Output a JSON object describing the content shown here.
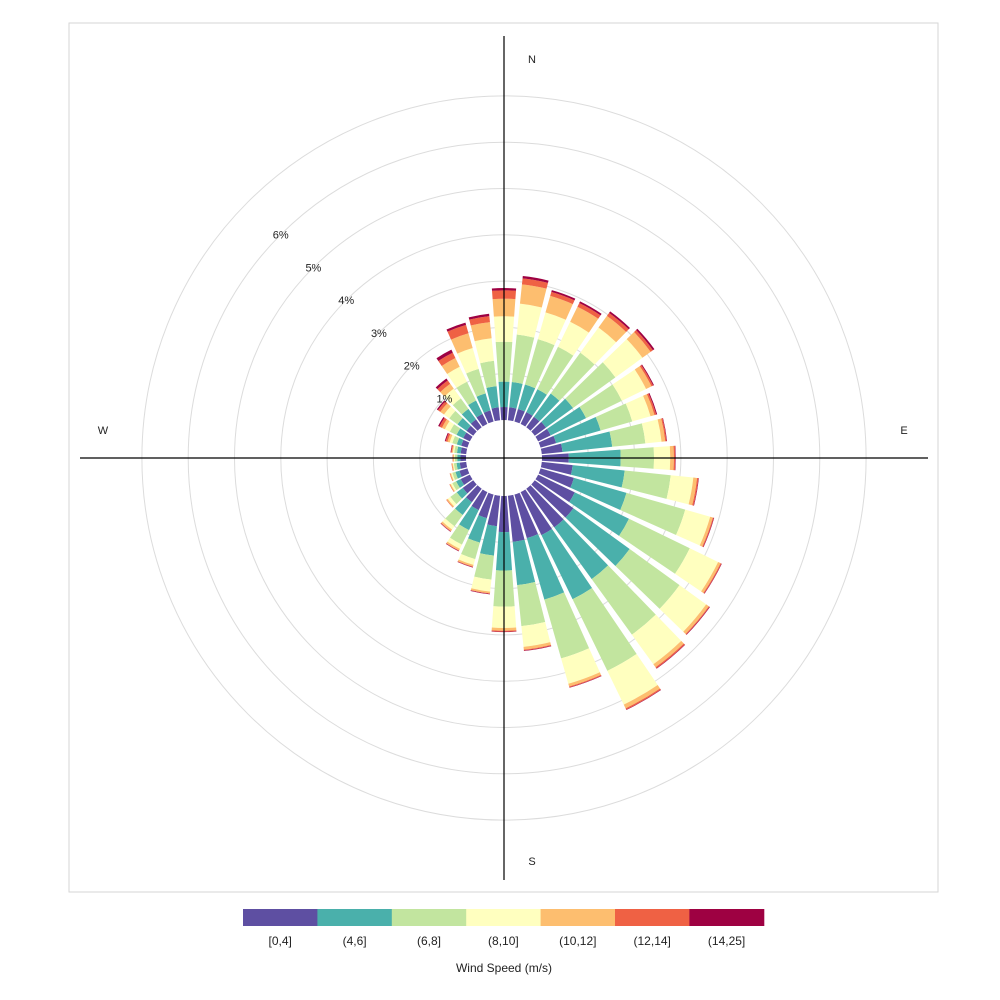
{
  "chart_data": {
    "type": "polar-stacked-bar",
    "subtype": "wind-rose",
    "title": "",
    "legend_title": "Wind Speed (m/s)",
    "legend_position": "bottom",
    "directions": [
      "N",
      "E",
      "S",
      "W"
    ],
    "radial_tick_labels": [
      "1%",
      "2%",
      "3%",
      "4%",
      "5%",
      "6%"
    ],
    "radial_range": [
      0,
      7
    ],
    "grid": true,
    "bins": [
      {
        "label": "[0,4]",
        "color": "#5e4fa2"
      },
      {
        "label": "(4,6]",
        "color": "#4ab0ab"
      },
      {
        "label": "(6,8]",
        "color": "#c2e59f"
      },
      {
        "label": "(8,10]",
        "color": "#ffffbf"
      },
      {
        "label": "(10,12]",
        "color": "#fdbe6f"
      },
      {
        "label": "(12,14]",
        "color": "#ef6144"
      },
      {
        "label": "(14,25]",
        "color": "#9e0142"
      }
    ],
    "sector_width_deg": 10,
    "sectors": [
      {
        "direction_deg": 0,
        "values": [
          0.28,
          0.55,
          0.86,
          0.55,
          0.38,
          0.18,
          0.05
        ]
      },
      {
        "direction_deg": 10,
        "values": [
          0.28,
          0.55,
          1.03,
          0.67,
          0.42,
          0.13,
          0.05
        ]
      },
      {
        "direction_deg": 20,
        "values": [
          0.28,
          0.55,
          1.02,
          0.6,
          0.37,
          0.09,
          0.04
        ]
      },
      {
        "direction_deg": 30,
        "values": [
          0.28,
          0.55,
          1.02,
          0.6,
          0.36,
          0.09,
          0.04
        ]
      },
      {
        "direction_deg": 40,
        "values": [
          0.28,
          0.62,
          1.09,
          0.67,
          0.31,
          0.08,
          0.04
        ]
      },
      {
        "direction_deg": 50,
        "values": [
          0.3,
          0.72,
          1.13,
          0.72,
          0.22,
          0.06,
          0.04
        ]
      },
      {
        "direction_deg": 60,
        "values": [
          0.3,
          0.85,
          0.86,
          0.58,
          0.13,
          0.04,
          0.02
        ]
      },
      {
        "direction_deg": 70,
        "values": [
          0.35,
          1.0,
          0.71,
          0.41,
          0.09,
          0.04,
          0.02
        ]
      },
      {
        "direction_deg": 80,
        "values": [
          0.45,
          1.08,
          0.72,
          0.35,
          0.08,
          0.03,
          0.01
        ]
      },
      {
        "direction_deg": 90,
        "values": [
          0.58,
          1.12,
          0.72,
          0.35,
          0.08,
          0.03,
          0.01
        ]
      },
      {
        "direction_deg": 100,
        "values": [
          0.67,
          1.13,
          1.0,
          0.49,
          0.08,
          0.03,
          0.01
        ]
      },
      {
        "direction_deg": 110,
        "values": [
          0.75,
          1.18,
          1.32,
          0.56,
          0.06,
          0.02,
          0.01
        ]
      },
      {
        "direction_deg": 120,
        "values": [
          0.88,
          1.3,
          1.46,
          0.68,
          0.06,
          0.02,
          0.01
        ]
      },
      {
        "direction_deg": 130,
        "values": [
          1.03,
          1.5,
          1.33,
          0.71,
          0.07,
          0.02,
          0.01
        ]
      },
      {
        "direction_deg": 140,
        "values": [
          1.03,
          1.38,
          1.48,
          0.79,
          0.08,
          0.03,
          0.01
        ]
      },
      {
        "direction_deg": 150,
        "values": [
          1.03,
          1.54,
          1.72,
          0.81,
          0.09,
          0.03,
          0.01
        ]
      },
      {
        "direction_deg": 160,
        "values": [
          0.98,
          1.38,
          1.32,
          0.57,
          0.06,
          0.02,
          0.01
        ]
      },
      {
        "direction_deg": 170,
        "values": [
          1.0,
          0.94,
          0.89,
          0.45,
          0.06,
          0.02,
          0.01
        ]
      },
      {
        "direction_deg": 180,
        "values": [
          0.78,
          0.83,
          0.78,
          0.46,
          0.06,
          0.02,
          0.01
        ]
      },
      {
        "direction_deg": 190,
        "values": [
          0.66,
          0.64,
          0.52,
          0.26,
          0.04,
          0.01,
          0.01
        ]
      },
      {
        "direction_deg": 200,
        "values": [
          0.53,
          0.55,
          0.37,
          0.13,
          0.04,
          0.01,
          0.01
        ]
      },
      {
        "direction_deg": 210,
        "values": [
          0.43,
          0.48,
          0.35,
          0.1,
          0.04,
          0.01,
          0.01
        ]
      },
      {
        "direction_deg": 220,
        "values": [
          0.36,
          0.34,
          0.3,
          0.09,
          0.04,
          0.01,
          0.01
        ]
      },
      {
        "direction_deg": 230,
        "values": [
          0.28,
          0.16,
          0.17,
          0.07,
          0.03,
          0.01,
          0.0
        ]
      },
      {
        "direction_deg": 240,
        "values": [
          0.22,
          0.11,
          0.09,
          0.04,
          0.02,
          0.01,
          0.0
        ]
      },
      {
        "direction_deg": 250,
        "values": [
          0.18,
          0.09,
          0.07,
          0.03,
          0.02,
          0.01,
          0.0
        ]
      },
      {
        "direction_deg": 260,
        "values": [
          0.14,
          0.07,
          0.06,
          0.02,
          0.02,
          0.01,
          0.0
        ]
      },
      {
        "direction_deg": 270,
        "values": [
          0.12,
          0.07,
          0.05,
          0.02,
          0.02,
          0.01,
          0.0
        ]
      },
      {
        "direction_deg": 280,
        "values": [
          0.12,
          0.08,
          0.06,
          0.03,
          0.02,
          0.02,
          0.01
        ]
      },
      {
        "direction_deg": 290,
        "values": [
          0.14,
          0.1,
          0.1,
          0.06,
          0.05,
          0.04,
          0.02
        ]
      },
      {
        "direction_deg": 300,
        "values": [
          0.16,
          0.16,
          0.16,
          0.12,
          0.07,
          0.06,
          0.03
        ]
      },
      {
        "direction_deg": 310,
        "values": [
          0.18,
          0.24,
          0.22,
          0.14,
          0.1,
          0.06,
          0.03
        ]
      },
      {
        "direction_deg": 320,
        "values": [
          0.21,
          0.28,
          0.28,
          0.26,
          0.13,
          0.09,
          0.05
        ]
      },
      {
        "direction_deg": 330,
        "values": [
          0.24,
          0.32,
          0.45,
          0.36,
          0.21,
          0.13,
          0.07
        ]
      },
      {
        "direction_deg": 340,
        "values": [
          0.25,
          0.38,
          0.55,
          0.47,
          0.33,
          0.19,
          0.05
        ]
      },
      {
        "direction_deg": 350,
        "values": [
          0.28,
          0.46,
          0.55,
          0.49,
          0.35,
          0.13,
          0.05
        ]
      }
    ]
  }
}
